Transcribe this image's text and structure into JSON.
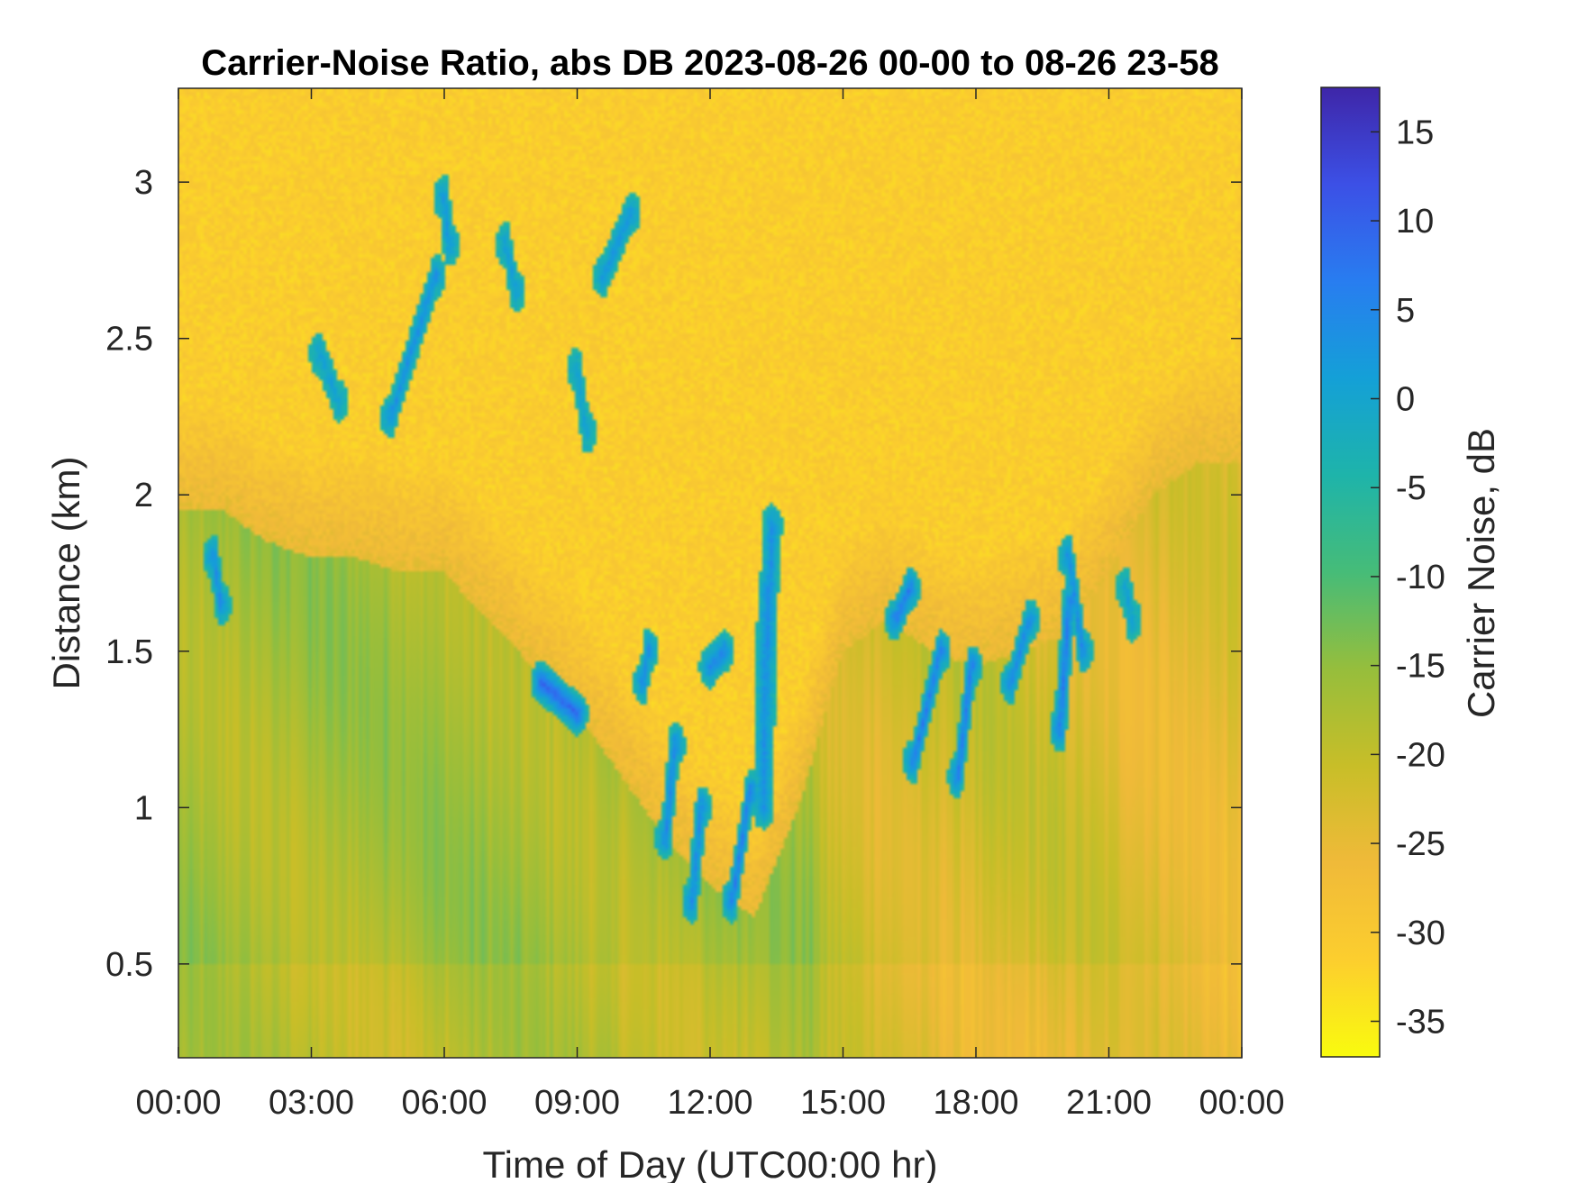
{
  "chart_data": {
    "type": "heatmap",
    "title": "Carrier-Noise Ratio, abs DB 2023-08-26 00-00 to 08-26 23-58",
    "xlabel": "Time of Day (UTC00:00 hr)",
    "ylabel": "Distance (km)",
    "colorbar_label": "Carrier Noise, dB",
    "colormap": "parula-reversed",
    "x_unit": "hours",
    "xlim": [
      0,
      24
    ],
    "ylim": [
      0.2,
      3.3
    ],
    "clim": [
      -37,
      17.5
    ],
    "x_ticks": [
      0,
      3,
      6,
      9,
      12,
      15,
      18,
      21,
      24
    ],
    "x_tick_labels": [
      "00:00",
      "03:00",
      "06:00",
      "09:00",
      "12:00",
      "15:00",
      "18:00",
      "21:00",
      "00:00"
    ],
    "y_ticks": [
      0.5,
      1,
      1.5,
      2,
      2.5,
      3
    ],
    "y_tick_labels": [
      "0.5",
      "1",
      "1.5",
      "2",
      "2.5",
      "3"
    ],
    "c_ticks": [
      -35,
      -30,
      -25,
      -20,
      -15,
      -10,
      -5,
      0,
      5,
      10,
      15
    ],
    "c_tick_labels": [
      "-35",
      "-30",
      "-25",
      "-20",
      "-15",
      "-10",
      "-5",
      "0",
      "5",
      "10",
      "15"
    ],
    "colors": {
      "high": "#3e26a8",
      "mid": "#22b0b7",
      "low": "#f9fb0e"
    },
    "features": {
      "noise_floor_db": -31,
      "boundary_layer_top_km": [
        [
          0,
          1.95
        ],
        [
          1,
          1.95
        ],
        [
          2,
          1.85
        ],
        [
          3,
          1.8
        ],
        [
          4,
          1.8
        ],
        [
          5,
          1.75
        ],
        [
          6,
          1.75
        ],
        [
          7,
          1.6
        ],
        [
          8,
          1.45
        ],
        [
          9,
          1.3
        ],
        [
          10,
          1.1
        ],
        [
          11,
          0.9
        ],
        [
          12,
          0.75
        ],
        [
          13,
          0.65
        ],
        [
          14,
          1.0
        ],
        [
          15,
          1.5
        ],
        [
          16,
          1.6
        ],
        [
          17,
          1.5
        ],
        [
          18,
          1.45
        ],
        [
          19,
          1.5
        ],
        [
          20,
          1.55
        ],
        [
          21,
          1.75
        ],
        [
          22,
          2.0
        ],
        [
          23,
          2.1
        ],
        [
          24,
          2.1
        ]
      ],
      "cloud_streaks": [
        [
          0.8,
          1.8,
          0.95,
          1.65,
          10
        ],
        [
          3.2,
          2.45,
          3.6,
          2.3,
          6
        ],
        [
          4.8,
          2.25,
          5.8,
          2.7,
          9
        ],
        [
          6.0,
          2.95,
          6.1,
          2.8,
          8
        ],
        [
          7.4,
          2.8,
          7.6,
          2.65,
          7
        ],
        [
          8.2,
          1.4,
          9.0,
          1.3,
          14
        ],
        [
          9.0,
          2.4,
          9.2,
          2.2,
          6
        ],
        [
          9.6,
          2.7,
          10.2,
          2.9,
          8
        ],
        [
          10.5,
          1.4,
          10.6,
          1.5,
          10
        ],
        [
          11.0,
          0.9,
          11.2,
          1.2,
          10
        ],
        [
          11.6,
          0.7,
          11.8,
          1.0,
          10
        ],
        [
          12.0,
          1.45,
          12.3,
          1.5,
          10
        ],
        [
          12.5,
          0.7,
          12.9,
          1.05,
          12
        ],
        [
          13.2,
          1.0,
          13.3,
          1.7,
          9
        ],
        [
          13.4,
          1.9,
          13.3,
          1.5,
          9
        ],
        [
          16.2,
          1.6,
          16.5,
          1.7,
          12
        ],
        [
          16.6,
          1.15,
          17.2,
          1.5,
          12
        ],
        [
          17.6,
          1.1,
          17.9,
          1.45,
          12
        ],
        [
          18.8,
          1.4,
          19.2,
          1.6,
          10
        ],
        [
          19.9,
          1.25,
          20.1,
          1.65,
          12
        ],
        [
          20.1,
          1.8,
          20.4,
          1.5,
          10
        ],
        [
          21.4,
          1.7,
          21.5,
          1.6,
          6
        ]
      ]
    }
  }
}
